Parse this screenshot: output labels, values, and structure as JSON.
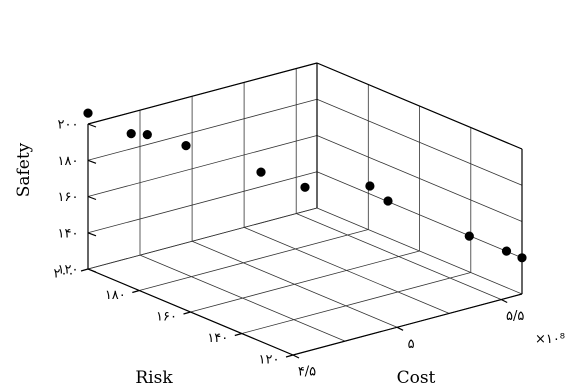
{
  "chart_data": {
    "type": "scatter",
    "dimensions": 3,
    "title": "",
    "xlabel": "Cost",
    "ylabel": "Risk",
    "zlabel": "Safety",
    "x_multiplier_label": "×۱۰⁸",
    "xlim": [
      4.5,
      5.6
    ],
    "ylim": [
      120,
      200
    ],
    "zlim": [
      120,
      200
    ],
    "grid": true,
    "x_ticks": [
      4.5,
      5,
      5.5
    ],
    "x_tick_labels": [
      "۴/۵",
      "۵",
      "۵/۵"
    ],
    "y_ticks": [
      120,
      140,
      160,
      180,
      200
    ],
    "y_tick_labels": [
      "۱۲۰",
      "۱۴۰",
      "۱۶۰",
      "۱۸۰",
      "۲۰۰"
    ],
    "z_ticks": [
      120,
      140,
      160,
      180,
      200
    ],
    "z_tick_labels": [
      "۱۲۰",
      "۱۴۰",
      "۱۶۰",
      "۱۸۰",
      "۲۰۰"
    ],
    "points": [
      {
        "x": 4.5,
        "y": 200,
        "z": 206
      },
      {
        "x": 4.56,
        "y": 188,
        "z": 200
      },
      {
        "x": 4.6,
        "y": 185,
        "z": 200
      },
      {
        "x": 4.7,
        "y": 178,
        "z": 195
      },
      {
        "x": 4.9,
        "y": 165,
        "z": 182
      },
      {
        "x": 5.05,
        "y": 160,
        "z": 172
      },
      {
        "x": 5.3,
        "y": 155,
        "z": 168
      },
      {
        "x": 5.35,
        "y": 152,
        "z": 160
      },
      {
        "x": 5.47,
        "y": 130,
        "z": 150
      },
      {
        "x": 5.55,
        "y": 122,
        "z": 144
      },
      {
        "x": 5.6,
        "y": 120,
        "z": 140
      }
    ]
  }
}
